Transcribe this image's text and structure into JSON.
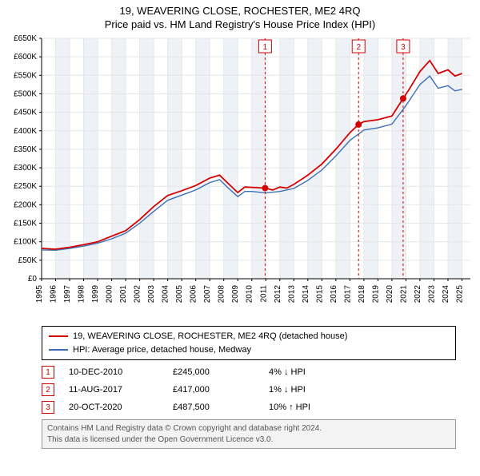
{
  "title": "19, WEAVERING CLOSE, ROCHESTER, ME2 4RQ",
  "subtitle": "Price paid vs. HM Land Registry's House Price Index (HPI)",
  "chart": {
    "type": "line",
    "background_color": "#ffffff",
    "grid_color": "#e6e6e6",
    "grid_band_color": "#eef2f7",
    "axis_color": "#000000",
    "xlim": [
      1995,
      2025.6
    ],
    "ylim": [
      0,
      650000
    ],
    "ytick_step": 50000,
    "y_ticks": [
      "£0",
      "£50K",
      "£100K",
      "£150K",
      "£200K",
      "£250K",
      "£300K",
      "£350K",
      "£400K",
      "£450K",
      "£500K",
      "£550K",
      "£600K",
      "£650K"
    ],
    "x_ticks": [
      1995,
      1996,
      1997,
      1998,
      1999,
      2000,
      2001,
      2002,
      2003,
      2004,
      2005,
      2006,
      2007,
      2008,
      2009,
      2010,
      2011,
      2012,
      2013,
      2014,
      2015,
      2016,
      2017,
      2018,
      2019,
      2020,
      2021,
      2022,
      2023,
      2024,
      2025
    ],
    "tick_fontsize": 10,
    "series": [
      {
        "name": "19, WEAVERING CLOSE, ROCHESTER, ME2 4RQ (detached house)",
        "color": "#d40000",
        "line_width": 1.8,
        "values": [
          [
            1995,
            82000
          ],
          [
            1996,
            80000
          ],
          [
            1997,
            85000
          ],
          [
            1998,
            92000
          ],
          [
            1999,
            100000
          ],
          [
            2000,
            115000
          ],
          [
            2001,
            130000
          ],
          [
            2002,
            160000
          ],
          [
            2003,
            195000
          ],
          [
            2004,
            225000
          ],
          [
            2005,
            238000
          ],
          [
            2006,
            252000
          ],
          [
            2007,
            272000
          ],
          [
            2007.7,
            280000
          ],
          [
            2008.3,
            258000
          ],
          [
            2009,
            233000
          ],
          [
            2009.5,
            248000
          ],
          [
            2010,
            247000
          ],
          [
            2010.95,
            245000
          ],
          [
            2011.5,
            240000
          ],
          [
            2012,
            248000
          ],
          [
            2012.5,
            245000
          ],
          [
            2013,
            255000
          ],
          [
            2014,
            280000
          ],
          [
            2015,
            310000
          ],
          [
            2016,
            350000
          ],
          [
            2017,
            395000
          ],
          [
            2017.62,
            417000
          ],
          [
            2018,
            425000
          ],
          [
            2019,
            430000
          ],
          [
            2020,
            440000
          ],
          [
            2020.8,
            487500
          ],
          [
            2021.2,
            510000
          ],
          [
            2022,
            560000
          ],
          [
            2022.7,
            590000
          ],
          [
            2023.3,
            555000
          ],
          [
            2024,
            565000
          ],
          [
            2024.5,
            548000
          ],
          [
            2025,
            555000
          ]
        ]
      },
      {
        "name": "HPI: Average price, detached house, Medway",
        "color": "#3b6fb6",
        "line_width": 1.4,
        "values": [
          [
            1995,
            78000
          ],
          [
            1996,
            77000
          ],
          [
            1997,
            82000
          ],
          [
            1998,
            88000
          ],
          [
            1999,
            96000
          ],
          [
            2000,
            108000
          ],
          [
            2001,
            123000
          ],
          [
            2002,
            150000
          ],
          [
            2003,
            182000
          ],
          [
            2004,
            212000
          ],
          [
            2005,
            226000
          ],
          [
            2006,
            240000
          ],
          [
            2007,
            260000
          ],
          [
            2007.7,
            268000
          ],
          [
            2008.3,
            246000
          ],
          [
            2009,
            222000
          ],
          [
            2009.5,
            236000
          ],
          [
            2010,
            236000
          ],
          [
            2011,
            232000
          ],
          [
            2012,
            236000
          ],
          [
            2013,
            244000
          ],
          [
            2014,
            266000
          ],
          [
            2015,
            294000
          ],
          [
            2016,
            332000
          ],
          [
            2017,
            374000
          ],
          [
            2018,
            402000
          ],
          [
            2019,
            408000
          ],
          [
            2020,
            418000
          ],
          [
            2021,
            468000
          ],
          [
            2022,
            525000
          ],
          [
            2022.7,
            548000
          ],
          [
            2023.3,
            515000
          ],
          [
            2024,
            522000
          ],
          [
            2024.5,
            508000
          ],
          [
            2025,
            512000
          ]
        ]
      }
    ],
    "sale_markers": [
      {
        "label": "1",
        "x": 2010.95,
        "y": 245000,
        "color": "#d40000"
      },
      {
        "label": "2",
        "x": 2017.62,
        "y": 417000,
        "color": "#d40000"
      },
      {
        "label": "3",
        "x": 2020.8,
        "y": 487500,
        "color": "#d40000"
      }
    ],
    "marker_box": {
      "border_color": "#d40000",
      "fontsize": 10,
      "dash": "3,3"
    }
  },
  "legend": {
    "items": [
      {
        "color": "#d40000",
        "label": "19, WEAVERING CLOSE, ROCHESTER, ME2 4RQ (detached house)"
      },
      {
        "color": "#3b6fb6",
        "label": "HPI: Average price, detached house, Medway"
      }
    ]
  },
  "sales_table": {
    "rows": [
      {
        "n": "1",
        "date": "10-DEC-2010",
        "price": "£245,000",
        "hpi": "4% ↓ HPI",
        "color": "#d40000"
      },
      {
        "n": "2",
        "date": "11-AUG-2017",
        "price": "£417,000",
        "hpi": "1% ↓ HPI",
        "color": "#d40000"
      },
      {
        "n": "3",
        "date": "20-OCT-2020",
        "price": "£487,500",
        "hpi": "10% ↑ HPI",
        "color": "#d40000"
      }
    ]
  },
  "footer": {
    "line1": "Contains HM Land Registry data © Crown copyright and database right 2024.",
    "line2": "This data is licensed under the Open Government Licence v3.0."
  }
}
